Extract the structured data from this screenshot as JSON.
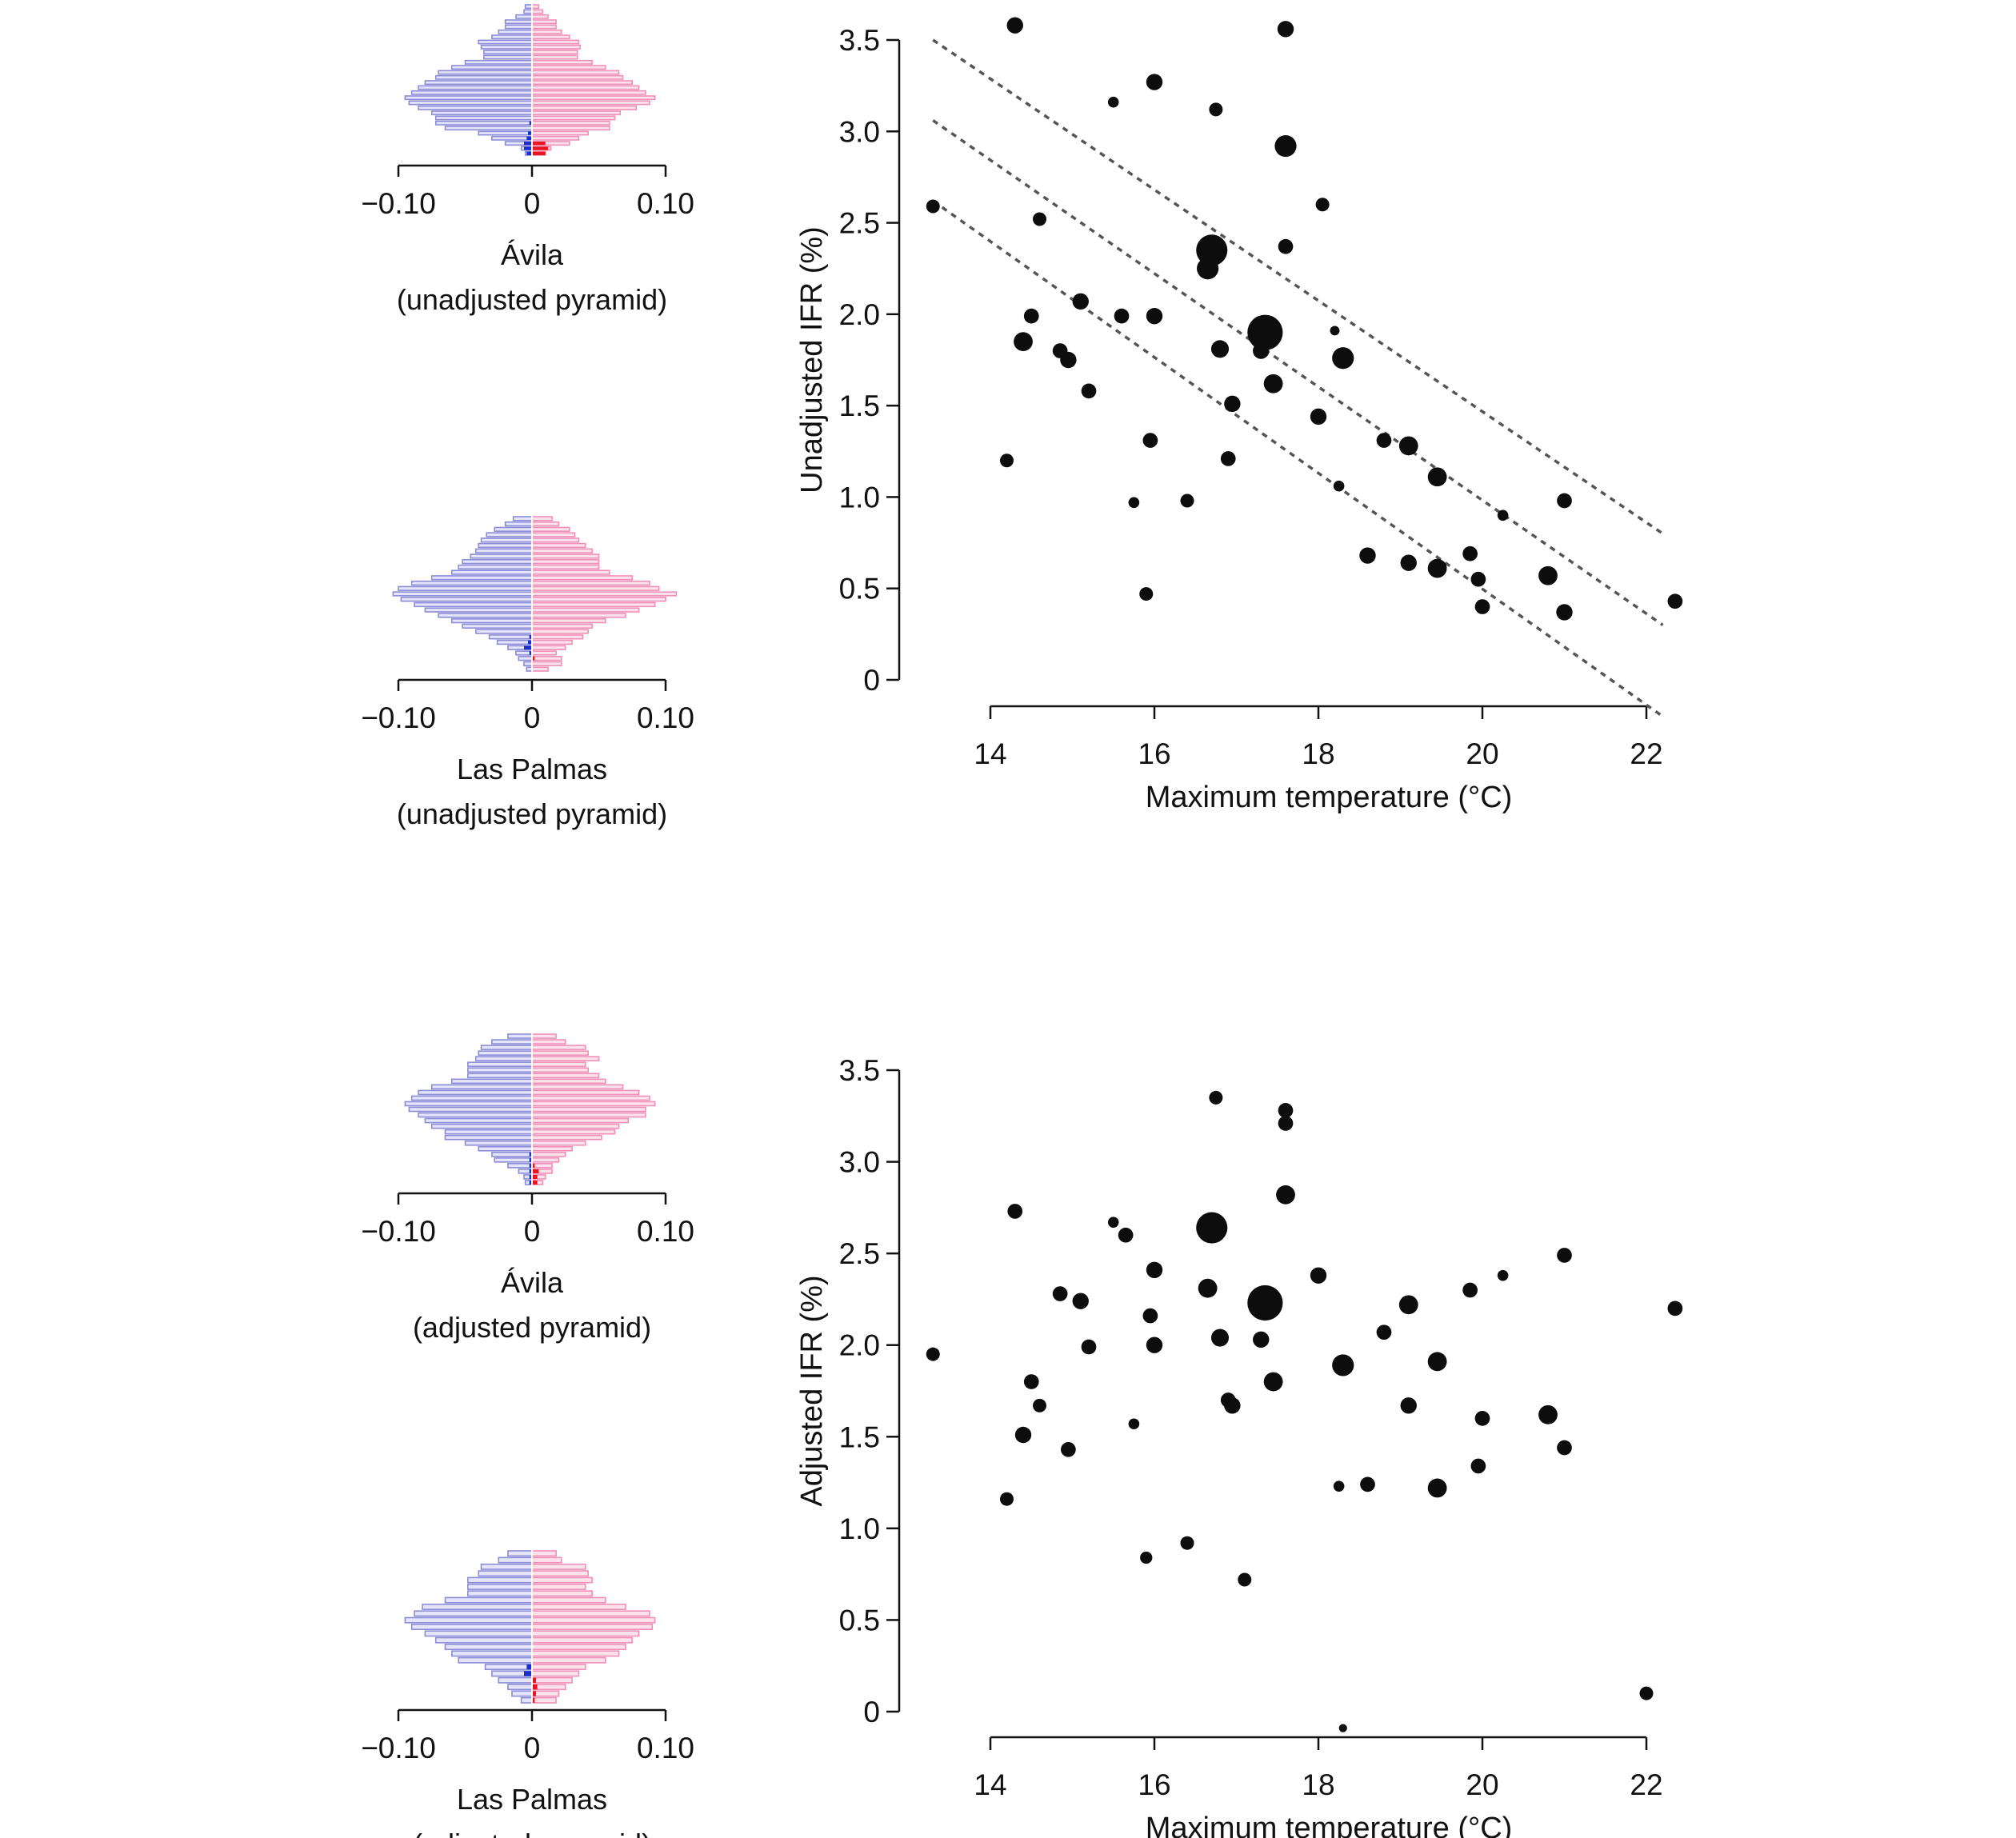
{
  "pyramids": [
    {
      "id": "avila-unadjusted",
      "name": "Ávila",
      "subtitle": "(unadjusted pyramid)",
      "tick_labels": [
        "−0.10",
        "0",
        "0.10"
      ],
      "xlim": [
        -0.1,
        0.1
      ],
      "male": [
        0.005,
        0.006,
        0.012,
        0.02,
        0.02,
        0.025,
        0.03,
        0.04,
        0.038,
        0.036,
        0.036,
        0.05,
        0.06,
        0.07,
        0.072,
        0.08,
        0.085,
        0.09,
        0.095,
        0.092,
        0.085,
        0.075,
        0.072,
        0.072,
        0.065,
        0.04,
        0.03,
        0.02,
        0.008,
        0.005
      ],
      "female": [
        0.005,
        0.008,
        0.012,
        0.018,
        0.018,
        0.022,
        0.028,
        0.035,
        0.036,
        0.034,
        0.034,
        0.045,
        0.055,
        0.065,
        0.068,
        0.075,
        0.08,
        0.085,
        0.092,
        0.088,
        0.078,
        0.066,
        0.062,
        0.058,
        0.058,
        0.042,
        0.035,
        0.028,
        0.014,
        0.01
      ],
      "male_excess": [
        0,
        0,
        0,
        0,
        0,
        0,
        0,
        0,
        0,
        0,
        0,
        0,
        0,
        0,
        0,
        0,
        0,
        0,
        0,
        0,
        0,
        0,
        0,
        0.002,
        0,
        0.003,
        0.004,
        0.006,
        0.006,
        0.004
      ],
      "female_excess": [
        0,
        0,
        0,
        0,
        0,
        0,
        0,
        0,
        0,
        0,
        0,
        0,
        0,
        0,
        0,
        0,
        0,
        0,
        0,
        0,
        0,
        0,
        0,
        0,
        0,
        0,
        0,
        0.01,
        0.012,
        0.01
      ]
    },
    {
      "id": "laspalmas-unadjusted",
      "name": "Las Palmas",
      "subtitle": "(unadjusted pyramid)",
      "tick_labels": [
        "−0.10",
        "0",
        "0.10"
      ],
      "xlim": [
        -0.1,
        0.1
      ],
      "male": [
        0.014,
        0.02,
        0.028,
        0.034,
        0.038,
        0.04,
        0.042,
        0.046,
        0.052,
        0.055,
        0.06,
        0.075,
        0.09,
        0.1,
        0.104,
        0.098,
        0.088,
        0.08,
        0.07,
        0.06,
        0.052,
        0.042,
        0.032,
        0.026,
        0.018,
        0.012,
        0.01,
        0.006,
        0.004
      ],
      "female": [
        0.015,
        0.02,
        0.028,
        0.032,
        0.035,
        0.04,
        0.045,
        0.05,
        0.05,
        0.05,
        0.058,
        0.075,
        0.088,
        0.095,
        0.108,
        0.1,
        0.092,
        0.08,
        0.07,
        0.055,
        0.045,
        0.042,
        0.038,
        0.03,
        0.025,
        0.018,
        0.022,
        0.022,
        0.012
      ],
      "male_excess": [
        0,
        0,
        0,
        0,
        0,
        0,
        0,
        0,
        0,
        0,
        0,
        0,
        0,
        0,
        0,
        0,
        0,
        0,
        0,
        0,
        0,
        0,
        0.002,
        0.003,
        0.006,
        0.002,
        0,
        0,
        0
      ],
      "female_excess": [
        0,
        0,
        0,
        0,
        0,
        0,
        0,
        0,
        0,
        0,
        0,
        0,
        0,
        0,
        0,
        0,
        0,
        0,
        0,
        0,
        0,
        0,
        0,
        0,
        0,
        0,
        0.002,
        0,
        0
      ]
    },
    {
      "id": "avila-adjusted",
      "name": "Ávila",
      "subtitle": "(adjusted pyramid)",
      "tick_labels": [
        "−0.10",
        "0",
        "0.10"
      ],
      "xlim": [
        -0.1,
        0.1
      ],
      "male": [
        0.018,
        0.03,
        0.038,
        0.04,
        0.042,
        0.048,
        0.048,
        0.048,
        0.06,
        0.075,
        0.085,
        0.09,
        0.095,
        0.092,
        0.085,
        0.08,
        0.075,
        0.065,
        0.065,
        0.05,
        0.04,
        0.03,
        0.028,
        0.018,
        0.01,
        0.006,
        0.005
      ],
      "female": [
        0.018,
        0.025,
        0.04,
        0.042,
        0.05,
        0.04,
        0.042,
        0.05,
        0.055,
        0.068,
        0.08,
        0.088,
        0.092,
        0.085,
        0.085,
        0.072,
        0.065,
        0.062,
        0.052,
        0.04,
        0.03,
        0.025,
        0.02,
        0.015,
        0.015,
        0.01,
        0.008
      ],
      "male_excess": [
        0,
        0,
        0,
        0,
        0,
        0,
        0,
        0,
        0,
        0,
        0,
        0,
        0,
        0,
        0,
        0,
        0,
        0,
        0,
        0,
        0,
        0.002,
        0.002,
        0.002,
        0.002,
        0.002,
        0.002
      ],
      "female_excess": [
        0,
        0,
        0,
        0,
        0,
        0,
        0,
        0,
        0,
        0,
        0,
        0,
        0,
        0,
        0,
        0,
        0,
        0,
        0,
        0,
        0,
        0,
        0,
        0.002,
        0.005,
        0.004,
        0.004
      ]
    },
    {
      "id": "laspalmas-adjusted",
      "name": "Las Palmas",
      "subtitle": "(adjusted pyramid)",
      "tick_labels": [
        "−0.10",
        "0",
        "0.10"
      ],
      "xlim": [
        -0.1,
        0.1
      ],
      "male": [
        0.018,
        0.025,
        0.038,
        0.04,
        0.048,
        0.048,
        0.048,
        0.065,
        0.082,
        0.088,
        0.095,
        0.09,
        0.08,
        0.072,
        0.065,
        0.06,
        0.055,
        0.035,
        0.03,
        0.025,
        0.018,
        0.015,
        0.008
      ],
      "female": [
        0.018,
        0.022,
        0.04,
        0.042,
        0.045,
        0.04,
        0.045,
        0.055,
        0.07,
        0.088,
        0.092,
        0.09,
        0.08,
        0.075,
        0.07,
        0.065,
        0.055,
        0.04,
        0.035,
        0.03,
        0.025,
        0.02,
        0.018
      ],
      "male_excess": [
        0,
        0,
        0,
        0,
        0,
        0,
        0,
        0,
        0,
        0,
        0,
        0,
        0,
        0,
        0,
        0,
        0,
        0.004,
        0.006,
        0,
        0,
        0,
        0
      ],
      "female_excess": [
        0,
        0,
        0,
        0,
        0,
        0,
        0,
        0,
        0,
        0,
        0,
        0,
        0,
        0,
        0,
        0,
        0,
        0,
        0,
        0.003,
        0.004,
        0.003,
        0.002
      ]
    }
  ],
  "chart_data": [
    {
      "type": "scatter",
      "id": "unadjusted",
      "title": "",
      "xlabel": "Maximum temperature (°C)",
      "ylabel": "Unadjusted IFR (%)",
      "xlim": [
        12.9,
        22.4
      ],
      "ylim": [
        0,
        3.55
      ],
      "x_ticks": [
        14,
        16,
        18,
        20,
        22
      ],
      "y_ticks": [
        0,
        0.5,
        1.0,
        1.5,
        2.0,
        2.5,
        3.0,
        3.5
      ],
      "x_tick_labels": [
        "14",
        "16",
        "18",
        "20",
        "22"
      ],
      "y_tick_labels": [
        "0",
        "0.5",
        "1.0",
        "1.5",
        "2.0",
        "2.5",
        "3.0",
        "3.5"
      ],
      "grid": false,
      "points": [
        {
          "x": 13.3,
          "y": 2.59,
          "size": 1
        },
        {
          "x": 14.3,
          "y": 3.58,
          "size": 1.2
        },
        {
          "x": 17.6,
          "y": 3.56,
          "size": 1.2
        },
        {
          "x": 15.5,
          "y": 3.16,
          "size": 0.8
        },
        {
          "x": 16.0,
          "y": 3.27,
          "size": 1.2
        },
        {
          "x": 16.75,
          "y": 3.12,
          "size": 1
        },
        {
          "x": 17.6,
          "y": 2.92,
          "size": 1.6
        },
        {
          "x": 18.05,
          "y": 2.6,
          "size": 1
        },
        {
          "x": 14.6,
          "y": 2.52,
          "size": 1
        },
        {
          "x": 16.7,
          "y": 2.35,
          "size": 2.3
        },
        {
          "x": 16.65,
          "y": 2.25,
          "size": 1.6
        },
        {
          "x": 17.6,
          "y": 2.37,
          "size": 1.1
        },
        {
          "x": 14.5,
          "y": 1.99,
          "size": 1.1
        },
        {
          "x": 15.1,
          "y": 2.07,
          "size": 1.2
        },
        {
          "x": 15.6,
          "y": 1.99,
          "size": 1.1
        },
        {
          "x": 16.0,
          "y": 1.99,
          "size": 1.2
        },
        {
          "x": 17.35,
          "y": 1.9,
          "size": 2.6
        },
        {
          "x": 18.2,
          "y": 1.91,
          "size": 0.7
        },
        {
          "x": 14.4,
          "y": 1.85,
          "size": 1.4
        },
        {
          "x": 14.85,
          "y": 1.8,
          "size": 1.1
        },
        {
          "x": 14.95,
          "y": 1.75,
          "size": 1.2
        },
        {
          "x": 16.8,
          "y": 1.81,
          "size": 1.3
        },
        {
          "x": 17.3,
          "y": 1.8,
          "size": 1.2
        },
        {
          "x": 18.3,
          "y": 1.76,
          "size": 1.6
        },
        {
          "x": 15.2,
          "y": 1.58,
          "size": 1.1
        },
        {
          "x": 17.45,
          "y": 1.62,
          "size": 1.4
        },
        {
          "x": 16.95,
          "y": 1.51,
          "size": 1.2
        },
        {
          "x": 18.0,
          "y": 1.44,
          "size": 1.2
        },
        {
          "x": 14.2,
          "y": 1.2,
          "size": 1
        },
        {
          "x": 15.95,
          "y": 1.31,
          "size": 1.1
        },
        {
          "x": 16.9,
          "y": 1.21,
          "size": 1.1
        },
        {
          "x": 18.8,
          "y": 1.31,
          "size": 1.1
        },
        {
          "x": 19.1,
          "y": 1.28,
          "size": 1.4
        },
        {
          "x": 19.45,
          "y": 1.11,
          "size": 1.4
        },
        {
          "x": 15.75,
          "y": 0.97,
          "size": 0.8
        },
        {
          "x": 16.4,
          "y": 0.98,
          "size": 1
        },
        {
          "x": 18.25,
          "y": 1.06,
          "size": 0.8
        },
        {
          "x": 20.25,
          "y": 0.9,
          "size": 0.8
        },
        {
          "x": 21.0,
          "y": 0.98,
          "size": 1.1
        },
        {
          "x": 15.9,
          "y": 0.47,
          "size": 1
        },
        {
          "x": 18.6,
          "y": 0.68,
          "size": 1.2
        },
        {
          "x": 19.1,
          "y": 0.64,
          "size": 1.2
        },
        {
          "x": 19.45,
          "y": 0.61,
          "size": 1.4
        },
        {
          "x": 19.85,
          "y": 0.69,
          "size": 1.1
        },
        {
          "x": 19.95,
          "y": 0.55,
          "size": 1.1
        },
        {
          "x": 20.0,
          "y": 0.4,
          "size": 1.1
        },
        {
          "x": 20.8,
          "y": 0.57,
          "size": 1.4
        },
        {
          "x": 21.0,
          "y": 0.37,
          "size": 1.2
        },
        {
          "x": 22.35,
          "y": 0.43,
          "size": 1.1
        }
      ],
      "trend_lines": [
        {
          "name": "upper",
          "x": [
            13.3,
            22.2
          ],
          "y": [
            3.5,
            0.8
          ]
        },
        {
          "name": "fit",
          "x": [
            13.3,
            22.2
          ],
          "y": [
            3.06,
            0.3
          ]
        },
        {
          "name": "lower",
          "x": [
            13.3,
            22.2
          ],
          "y": [
            2.62,
            -0.2
          ]
        }
      ]
    },
    {
      "type": "scatter",
      "id": "adjusted",
      "title": "",
      "xlabel": "Maximum temperature (°C)",
      "ylabel": "Adjusted IFR (%)",
      "xlim": [
        12.9,
        22.4
      ],
      "ylim": [
        0,
        3.55
      ],
      "x_ticks": [
        14,
        16,
        18,
        20,
        22
      ],
      "y_ticks": [
        0,
        0.5,
        1.0,
        1.5,
        2.0,
        2.5,
        3.0,
        3.5
      ],
      "x_tick_labels": [
        "14",
        "16",
        "18",
        "20",
        "22"
      ],
      "y_tick_labels": [
        "0",
        "0.5",
        "1.0",
        "1.5",
        "2.0",
        "2.5",
        "3.0",
        "3.5"
      ],
      "grid": false,
      "points": [
        {
          "x": 16.75,
          "y": 3.35,
          "size": 1
        },
        {
          "x": 17.6,
          "y": 3.28,
          "size": 1.1
        },
        {
          "x": 17.6,
          "y": 3.21,
          "size": 1.1
        },
        {
          "x": 17.6,
          "y": 2.82,
          "size": 1.4
        },
        {
          "x": 14.3,
          "y": 2.73,
          "size": 1.1
        },
        {
          "x": 15.5,
          "y": 2.67,
          "size": 0.8
        },
        {
          "x": 15.65,
          "y": 2.6,
          "size": 1.1
        },
        {
          "x": 16.7,
          "y": 2.64,
          "size": 2.3
        },
        {
          "x": 21.0,
          "y": 2.49,
          "size": 1.1
        },
        {
          "x": 16.0,
          "y": 2.41,
          "size": 1.2
        },
        {
          "x": 18.0,
          "y": 2.38,
          "size": 1.2
        },
        {
          "x": 20.25,
          "y": 2.38,
          "size": 0.8
        },
        {
          "x": 14.85,
          "y": 2.28,
          "size": 1.1
        },
        {
          "x": 15.1,
          "y": 2.24,
          "size": 1.2
        },
        {
          "x": 16.65,
          "y": 2.31,
          "size": 1.4
        },
        {
          "x": 17.35,
          "y": 2.23,
          "size": 2.6
        },
        {
          "x": 19.1,
          "y": 2.22,
          "size": 1.4
        },
        {
          "x": 19.85,
          "y": 2.3,
          "size": 1.1
        },
        {
          "x": 22.35,
          "y": 2.2,
          "size": 1.1
        },
        {
          "x": 15.95,
          "y": 2.16,
          "size": 1.1
        },
        {
          "x": 18.8,
          "y": 2.07,
          "size": 1.1
        },
        {
          "x": 15.2,
          "y": 1.99,
          "size": 1.1
        },
        {
          "x": 16.0,
          "y": 2.0,
          "size": 1.2
        },
        {
          "x": 16.8,
          "y": 2.04,
          "size": 1.3
        },
        {
          "x": 17.3,
          "y": 2.03,
          "size": 1.2
        },
        {
          "x": 13.3,
          "y": 1.95,
          "size": 1
        },
        {
          "x": 18.3,
          "y": 1.89,
          "size": 1.6
        },
        {
          "x": 19.45,
          "y": 1.91,
          "size": 1.4
        },
        {
          "x": 14.5,
          "y": 1.8,
          "size": 1.1
        },
        {
          "x": 17.45,
          "y": 1.8,
          "size": 1.4
        },
        {
          "x": 14.6,
          "y": 1.67,
          "size": 1
        },
        {
          "x": 16.9,
          "y": 1.7,
          "size": 1.1
        },
        {
          "x": 16.95,
          "y": 1.67,
          "size": 1.2
        },
        {
          "x": 19.1,
          "y": 1.67,
          "size": 1.2
        },
        {
          "x": 20.0,
          "y": 1.6,
          "size": 1.1
        },
        {
          "x": 20.8,
          "y": 1.62,
          "size": 1.4
        },
        {
          "x": 15.75,
          "y": 1.57,
          "size": 0.8
        },
        {
          "x": 14.4,
          "y": 1.51,
          "size": 1.2
        },
        {
          "x": 14.95,
          "y": 1.43,
          "size": 1.1
        },
        {
          "x": 21.0,
          "y": 1.44,
          "size": 1.1
        },
        {
          "x": 19.95,
          "y": 1.34,
          "size": 1.1
        },
        {
          "x": 18.25,
          "y": 1.23,
          "size": 0.8
        },
        {
          "x": 18.6,
          "y": 1.24,
          "size": 1.1
        },
        {
          "x": 19.45,
          "y": 1.22,
          "size": 1.4
        },
        {
          "x": 14.2,
          "y": 1.16,
          "size": 1
        },
        {
          "x": 16.4,
          "y": 0.92,
          "size": 1
        },
        {
          "x": 15.9,
          "y": 0.84,
          "size": 0.9
        },
        {
          "x": 17.1,
          "y": 0.72,
          "size": 1
        },
        {
          "x": 22.0,
          "y": 0.1,
          "size": 1
        },
        {
          "x": 18.3,
          "y": -0.09,
          "size": 0.6
        }
      ],
      "trend_lines": []
    }
  ]
}
